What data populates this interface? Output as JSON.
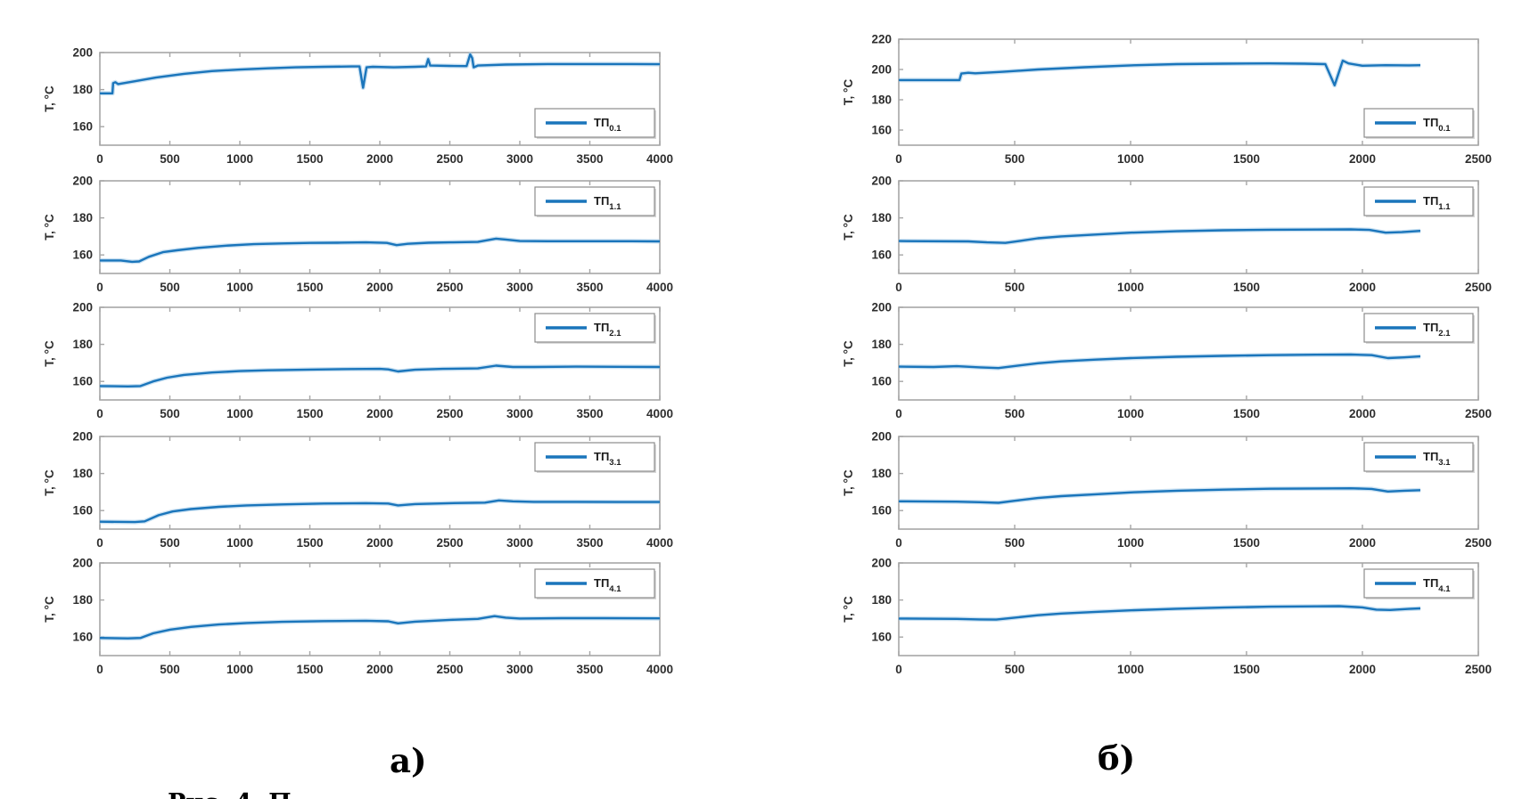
{
  "figure_labels": {
    "a": "а)",
    "b": "б)"
  },
  "caption_fragment": "Рис. 4. П",
  "colors": {
    "line": "#1a75bb",
    "line_halo": "#9ec9e8",
    "axis": "#a6a6a6",
    "tick_label": "#2e2e2e",
    "legend_border": "#8c8c8c",
    "legend_bg": "#ffffff"
  },
  "chart_data": [
    {
      "type": "line",
      "panel_label": "а)",
      "xlim": [
        0,
        4000
      ],
      "xticks": [
        0,
        500,
        1000,
        1500,
        2000,
        2500,
        3000,
        3500,
        4000
      ],
      "ylabel": "T, °C",
      "subplots": [
        {
          "legend": "ТП",
          "legend_sub": "0.1",
          "legend_pos": "bottom-right",
          "ylim": [
            150,
            200
          ],
          "yticks": [
            160,
            180,
            200
          ],
          "points": [
            [
              0,
              178
            ],
            [
              90,
              178
            ],
            [
              95,
              183.5
            ],
            [
              110,
              184
            ],
            [
              130,
              183
            ],
            [
              250,
              184.5
            ],
            [
              400,
              186.5
            ],
            [
              600,
              188.5
            ],
            [
              800,
              190
            ],
            [
              1000,
              190.8
            ],
            [
              1200,
              191.5
            ],
            [
              1400,
              192
            ],
            [
              1600,
              192.3
            ],
            [
              1800,
              192.5
            ],
            [
              1855,
              192.5
            ],
            [
              1880,
              181
            ],
            [
              1905,
              192
            ],
            [
              1950,
              192.3
            ],
            [
              2100,
              192
            ],
            [
              2250,
              192.3
            ],
            [
              2330,
              192.5
            ],
            [
              2345,
              196.5
            ],
            [
              2360,
              193
            ],
            [
              2500,
              192.8
            ],
            [
              2620,
              192.7
            ],
            [
              2645,
              199
            ],
            [
              2660,
              197
            ],
            [
              2670,
              192
            ],
            [
              2700,
              193
            ],
            [
              2900,
              193.5
            ],
            [
              3200,
              193.8
            ],
            [
              3500,
              193.8
            ],
            [
              3800,
              193.8
            ],
            [
              4000,
              193.7
            ]
          ]
        },
        {
          "legend": "ТП",
          "legend_sub": "1.1",
          "legend_pos": "top-right",
          "ylim": [
            150,
            200
          ],
          "yticks": [
            160,
            180,
            200
          ],
          "points": [
            [
              0,
              157
            ],
            [
              150,
              157
            ],
            [
              230,
              156.3
            ],
            [
              280,
              156.5
            ],
            [
              350,
              159
            ],
            [
              450,
              161.5
            ],
            [
              550,
              162.5
            ],
            [
              700,
              163.8
            ],
            [
              900,
              165
            ],
            [
              1100,
              165.8
            ],
            [
              1300,
              166.2
            ],
            [
              1500,
              166.5
            ],
            [
              1700,
              166.6
            ],
            [
              1900,
              166.8
            ],
            [
              2050,
              166.5
            ],
            [
              2120,
              165.3
            ],
            [
              2200,
              166
            ],
            [
              2350,
              166.6
            ],
            [
              2500,
              166.8
            ],
            [
              2700,
              167
            ],
            [
              2830,
              168.8
            ],
            [
              2900,
              168.3
            ],
            [
              3000,
              167.5
            ],
            [
              3200,
              167.4
            ],
            [
              3500,
              167.4
            ],
            [
              3800,
              167.4
            ],
            [
              4000,
              167.3
            ]
          ]
        },
        {
          "legend": "ТП",
          "legend_sub": "2.1",
          "legend_pos": "top-right",
          "ylim": [
            150,
            200
          ],
          "yticks": [
            160,
            180,
            200
          ],
          "points": [
            [
              0,
              157.5
            ],
            [
              200,
              157.3
            ],
            [
              290,
              157.5
            ],
            [
              380,
              160
            ],
            [
              480,
              162
            ],
            [
              600,
              163.5
            ],
            [
              800,
              164.8
            ],
            [
              1000,
              165.6
            ],
            [
              1200,
              166
            ],
            [
              1500,
              166.4
            ],
            [
              1800,
              166.7
            ],
            [
              2000,
              166.8
            ],
            [
              2060,
              166.5
            ],
            [
              2130,
              165.4
            ],
            [
              2250,
              166.3
            ],
            [
              2450,
              166.8
            ],
            [
              2700,
              167
            ],
            [
              2830,
              168.5
            ],
            [
              2950,
              167.8
            ],
            [
              3100,
              167.8
            ],
            [
              3400,
              168
            ],
            [
              3700,
              167.9
            ],
            [
              4000,
              167.8
            ]
          ]
        },
        {
          "legend": "ТП",
          "legend_sub": "3.1",
          "legend_pos": "top-right",
          "ylim": [
            150,
            200
          ],
          "yticks": [
            160,
            180,
            200
          ],
          "points": [
            [
              0,
              154
            ],
            [
              250,
              153.8
            ],
            [
              320,
              154.2
            ],
            [
              420,
              157.5
            ],
            [
              520,
              159.5
            ],
            [
              650,
              160.8
            ],
            [
              850,
              162
            ],
            [
              1050,
              162.8
            ],
            [
              1300,
              163.3
            ],
            [
              1600,
              163.8
            ],
            [
              1900,
              164
            ],
            [
              2060,
              163.8
            ],
            [
              2130,
              162.8
            ],
            [
              2250,
              163.5
            ],
            [
              2500,
              164
            ],
            [
              2750,
              164.3
            ],
            [
              2850,
              165.5
            ],
            [
              2950,
              165
            ],
            [
              3100,
              164.7
            ],
            [
              3400,
              164.7
            ],
            [
              3700,
              164.6
            ],
            [
              4000,
              164.6
            ]
          ]
        },
        {
          "legend": "ТП",
          "legend_sub": "4.1",
          "legend_pos": "top-right",
          "ylim": [
            150,
            200
          ],
          "yticks": [
            160,
            180,
            200
          ],
          "points": [
            [
              0,
              159.5
            ],
            [
              200,
              159.3
            ],
            [
              290,
              159.5
            ],
            [
              380,
              162
            ],
            [
              500,
              164
            ],
            [
              650,
              165.5
            ],
            [
              850,
              166.8
            ],
            [
              1050,
              167.6
            ],
            [
              1300,
              168.2
            ],
            [
              1600,
              168.6
            ],
            [
              1900,
              168.8
            ],
            [
              2060,
              168.5
            ],
            [
              2130,
              167.4
            ],
            [
              2250,
              168.3
            ],
            [
              2500,
              169.3
            ],
            [
              2700,
              169.8
            ],
            [
              2820,
              171.3
            ],
            [
              2900,
              170.5
            ],
            [
              3000,
              170
            ],
            [
              3300,
              170.2
            ],
            [
              3600,
              170.2
            ],
            [
              4000,
              170.1
            ]
          ]
        }
      ]
    },
    {
      "type": "line",
      "panel_label": "б)",
      "xlim": [
        0,
        2500
      ],
      "xticks": [
        0,
        500,
        1000,
        1500,
        2000,
        2500
      ],
      "ylabel": "T, °C",
      "subplots": [
        {
          "legend": "ТП",
          "legend_sub": "0.1",
          "legend_pos": "bottom-right",
          "ylim": [
            150,
            220
          ],
          "yticks": [
            160,
            180,
            200,
            220
          ],
          "points": [
            [
              0,
              193
            ],
            [
              250,
              193
            ],
            [
              262,
              193
            ],
            [
              270,
              197.3
            ],
            [
              300,
              197.8
            ],
            [
              330,
              197.5
            ],
            [
              450,
              198.5
            ],
            [
              600,
              200
            ],
            [
              800,
              201.5
            ],
            [
              1000,
              202.7
            ],
            [
              1200,
              203.5
            ],
            [
              1400,
              203.8
            ],
            [
              1600,
              204
            ],
            [
              1750,
              203.8
            ],
            [
              1840,
              203.5
            ],
            [
              1880,
              189.5
            ],
            [
              1915,
              205.8
            ],
            [
              1940,
              204
            ],
            [
              2000,
              202.5
            ],
            [
              2100,
              202.8
            ],
            [
              2200,
              202.7
            ],
            [
              2250,
              202.8
            ]
          ]
        },
        {
          "legend": "ТП",
          "legend_sub": "1.1",
          "legend_pos": "top-right",
          "ylim": [
            150,
            200
          ],
          "yticks": [
            160,
            180,
            200
          ],
          "points": [
            [
              0,
              167.5
            ],
            [
              300,
              167.3
            ],
            [
              380,
              166.8
            ],
            [
              460,
              166.5
            ],
            [
              520,
              167.5
            ],
            [
              600,
              169
            ],
            [
              700,
              170
            ],
            [
              850,
              171
            ],
            [
              1000,
              172
            ],
            [
              1200,
              172.8
            ],
            [
              1400,
              173.3
            ],
            [
              1600,
              173.6
            ],
            [
              1800,
              173.7
            ],
            [
              1950,
              173.8
            ],
            [
              2030,
              173.5
            ],
            [
              2100,
              172
            ],
            [
              2170,
              172.3
            ],
            [
              2250,
              173
            ]
          ]
        },
        {
          "legend": "ТП",
          "legend_sub": "2.1",
          "legend_pos": "top-right",
          "ylim": [
            150,
            200
          ],
          "yticks": [
            160,
            180,
            200
          ],
          "points": [
            [
              0,
              168
            ],
            [
              150,
              167.8
            ],
            [
              250,
              168.2
            ],
            [
              350,
              167.6
            ],
            [
              430,
              167.2
            ],
            [
              500,
              168.3
            ],
            [
              600,
              169.8
            ],
            [
              700,
              170.8
            ],
            [
              850,
              171.8
            ],
            [
              1000,
              172.6
            ],
            [
              1200,
              173.3
            ],
            [
              1400,
              173.8
            ],
            [
              1600,
              174.2
            ],
            [
              1800,
              174.4
            ],
            [
              1950,
              174.5
            ],
            [
              2040,
              174.2
            ],
            [
              2110,
              172.6
            ],
            [
              2180,
              173
            ],
            [
              2250,
              173.5
            ]
          ]
        },
        {
          "legend": "ТП",
          "legend_sub": "3.1",
          "legend_pos": "top-right",
          "ylim": [
            150,
            200
          ],
          "yticks": [
            160,
            180,
            200
          ],
          "points": [
            [
              0,
              165
            ],
            [
              250,
              164.8
            ],
            [
              350,
              164.5
            ],
            [
              430,
              164.2
            ],
            [
              500,
              165.3
            ],
            [
              600,
              166.8
            ],
            [
              700,
              167.8
            ],
            [
              850,
              168.8
            ],
            [
              1000,
              169.8
            ],
            [
              1200,
              170.7
            ],
            [
              1400,
              171.3
            ],
            [
              1600,
              171.8
            ],
            [
              1800,
              171.9
            ],
            [
              1950,
              172
            ],
            [
              2040,
              171.7
            ],
            [
              2110,
              170.3
            ],
            [
              2180,
              170.7
            ],
            [
              2250,
              171
            ]
          ]
        },
        {
          "legend": "ТП",
          "legend_sub": "4.1",
          "legend_pos": "top-right",
          "ylim": [
            150,
            200
          ],
          "yticks": [
            160,
            180,
            200
          ],
          "points": [
            [
              0,
              170
            ],
            [
              250,
              169.8
            ],
            [
              350,
              169.5
            ],
            [
              420,
              169.4
            ],
            [
              500,
              170.5
            ],
            [
              600,
              171.8
            ],
            [
              700,
              172.7
            ],
            [
              850,
              173.6
            ],
            [
              1000,
              174.4
            ],
            [
              1200,
              175.3
            ],
            [
              1400,
              175.9
            ],
            [
              1600,
              176.4
            ],
            [
              1800,
              176.6
            ],
            [
              1900,
              176.7
            ],
            [
              2000,
              176
            ],
            [
              2060,
              174.8
            ],
            [
              2120,
              174.6
            ],
            [
              2200,
              175.2
            ],
            [
              2250,
              175.5
            ]
          ]
        }
      ]
    }
  ]
}
